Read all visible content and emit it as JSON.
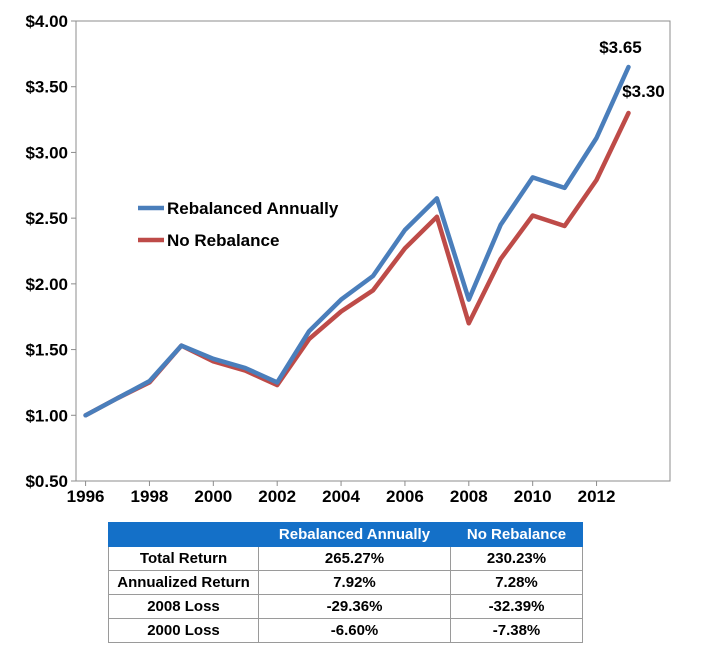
{
  "chart_data": {
    "type": "line",
    "title": "",
    "xlabel": "",
    "ylabel": "",
    "x": [
      1996,
      1997,
      1998,
      1999,
      2000,
      2001,
      2002,
      2003,
      2004,
      2005,
      2006,
      2007,
      2008,
      2009,
      2010,
      2011,
      2012,
      2013
    ],
    "x_ticks": [
      "1996",
      "1998",
      "2000",
      "2002",
      "2004",
      "2006",
      "2008",
      "2010",
      "2012"
    ],
    "xlim": [
      1995.7,
      2014.3
    ],
    "ylim": [
      0.5,
      4.0
    ],
    "y_ticks": [
      "$0.50",
      "$1.00",
      "$1.50",
      "$2.00",
      "$2.50",
      "$3.00",
      "$3.50",
      "$4.00"
    ],
    "grid": false,
    "legend_position": "middle-left",
    "series": [
      {
        "name": "Rebalanced Annually",
        "color": "#4a7ebb",
        "values": [
          1.0,
          1.13,
          1.26,
          1.53,
          1.43,
          1.36,
          1.25,
          1.64,
          1.88,
          2.06,
          2.41,
          2.65,
          1.88,
          2.45,
          2.81,
          2.73,
          3.11,
          3.65
        ],
        "end_label": "$3.65"
      },
      {
        "name": "No Rebalance",
        "color": "#be4b48",
        "values": [
          1.0,
          1.13,
          1.25,
          1.53,
          1.41,
          1.34,
          1.23,
          1.58,
          1.79,
          1.95,
          2.27,
          2.51,
          1.7,
          2.19,
          2.52,
          2.44,
          2.79,
          3.3
        ],
        "end_label": "$3.30"
      }
    ]
  },
  "table": {
    "header_color": "#1470c8",
    "columns": [
      "",
      "Rebalanced Annually",
      "No Rebalance"
    ],
    "rows": [
      {
        "label": "Total Return",
        "values": [
          "265.27%",
          "230.23%"
        ]
      },
      {
        "label": "Annualized Return",
        "values": [
          "7.92%",
          "7.28%"
        ]
      },
      {
        "label": "2008 Loss",
        "values": [
          "-29.36%",
          "-32.39%"
        ]
      },
      {
        "label": "2000 Loss",
        "values": [
          "-6.60%",
          "-7.38%"
        ]
      }
    ]
  }
}
